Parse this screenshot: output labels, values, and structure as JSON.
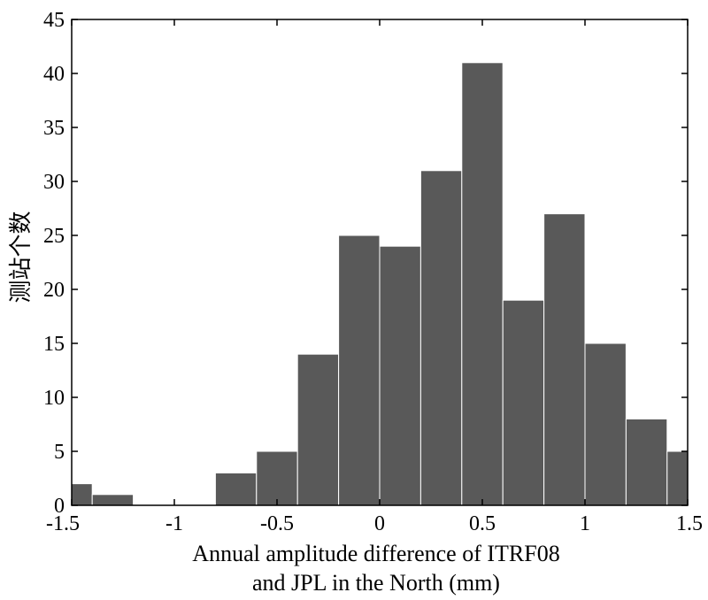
{
  "chart_data": {
    "type": "bar",
    "subtype": "histogram",
    "bin_edges": [
      -1.5,
      -1.4,
      -1.2,
      -1.0,
      -0.8,
      -0.6,
      -0.4,
      -0.2,
      0.0,
      0.2,
      0.4,
      0.6,
      0.8,
      1.0,
      1.2,
      1.4,
      1.5
    ],
    "values": [
      2,
      1,
      0,
      0,
      3,
      5,
      14,
      25,
      24,
      31,
      41,
      19,
      27,
      15,
      8,
      5
    ],
    "xlabel_line1": "Annual amplitude difference of ITRF08",
    "xlabel_line2": "and JPL in the North (mm)",
    "ylabel": "测站个数",
    "xlim": [
      -1.5,
      1.5
    ],
    "ylim": [
      0,
      45
    ],
    "x_ticks": [
      -1.5,
      -1,
      -0.5,
      0,
      0.5,
      1,
      1.5
    ],
    "x_tick_labels": [
      "-1.5",
      "-1",
      "-0.5",
      "0",
      "0.5",
      "1",
      "1.5"
    ],
    "y_ticks": [
      0,
      5,
      10,
      15,
      20,
      25,
      30,
      35,
      40,
      45
    ],
    "y_tick_labels": [
      "0",
      "5",
      "10",
      "15",
      "20",
      "25",
      "30",
      "35",
      "40",
      "45"
    ],
    "bar_color": "#595959",
    "bar_edge_color": "#ffffff",
    "grid": false,
    "legend": "none"
  }
}
